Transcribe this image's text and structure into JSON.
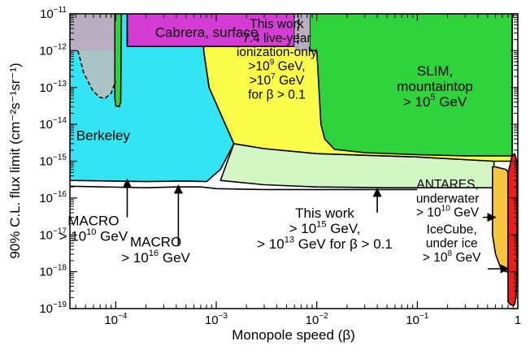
{
  "chart_data": {
    "type": "area",
    "xlabel": "Monopole speed (β)",
    "ylabel": "90% C.L. flux limit (cm⁻²s⁻¹sr⁻¹)",
    "xscale": "log",
    "yscale": "log",
    "xlim": [
      3.5e-05,
      1
    ],
    "ylim": [
      1e-19,
      1e-11
    ],
    "x_ticks": [
      {
        "value": 0.0001,
        "base": "10",
        "exp": "−4"
      },
      {
        "value": 0.001,
        "base": "10",
        "exp": "−3"
      },
      {
        "value": 0.01,
        "base": "10",
        "exp": "−2"
      },
      {
        "value": 0.1,
        "base": "10",
        "exp": "−1"
      },
      {
        "value": 1,
        "base": "1",
        "exp": ""
      }
    ],
    "y_ticks": [
      {
        "value": 1e-11,
        "base": "10",
        "exp": "−11"
      },
      {
        "value": 1e-12,
        "base": "10",
        "exp": "−12"
      },
      {
        "value": 1e-13,
        "base": "10",
        "exp": "−13"
      },
      {
        "value": 1e-14,
        "base": "10",
        "exp": "−14"
      },
      {
        "value": 1e-15,
        "base": "10",
        "exp": "−15"
      },
      {
        "value": 1e-16,
        "base": "10",
        "exp": "−16"
      },
      {
        "value": 1e-17,
        "base": "10",
        "exp": "−17"
      },
      {
        "value": 1e-18,
        "base": "10",
        "exp": "−18"
      },
      {
        "value": 1e-19,
        "base": "10",
        "exp": "−19"
      }
    ],
    "regions": [
      {
        "id": "macro-cyan",
        "color": "#33e5f2",
        "stroke": "#000000",
        "points": [
          [
            3.5e-05,
            3e-16
          ],
          [
            0.0002,
            2.8e-16
          ],
          [
            0.0005,
            2.9e-16
          ],
          [
            0.0008,
            2.8e-16
          ],
          [
            0.0011,
            6e-16
          ],
          [
            0.0015,
            3e-15
          ],
          [
            0.0011,
            2e-14
          ],
          [
            0.00085,
            1e-13
          ],
          [
            0.00075,
            1e-12
          ],
          [
            0.00075,
            1e-11
          ],
          [
            3.5e-05,
            1e-11
          ]
        ]
      },
      {
        "id": "this-work-lightgreen",
        "color": "#d4f5c4",
        "stroke": "#000000",
        "points": [
          [
            0.0011,
            3e-16
          ],
          [
            0.003,
            2.3e-16
          ],
          [
            0.01,
            2e-16
          ],
          [
            0.05,
            1.9e-16
          ],
          [
            0.3,
            1.9e-16
          ],
          [
            0.58,
            1.9e-16
          ],
          [
            0.58,
            1e-15
          ],
          [
            0.1,
            1.3e-15
          ],
          [
            0.01,
            1.6e-15
          ],
          [
            0.003,
            2.2e-15
          ],
          [
            0.0015,
            3e-15
          ]
        ]
      },
      {
        "id": "this-work-yellow",
        "color": "#fbfb4a",
        "stroke": "#000000",
        "points": [
          [
            0.0015,
            3e-15
          ],
          [
            0.003,
            2.2e-15
          ],
          [
            0.01,
            1.6e-15
          ],
          [
            0.1,
            1.3e-15
          ],
          [
            0.58,
            1e-15
          ],
          [
            0.88,
            1e-15
          ],
          [
            0.88,
            1e-11
          ],
          [
            0.00075,
            1e-11
          ],
          [
            0.00075,
            1e-12
          ],
          [
            0.00085,
            1e-13
          ],
          [
            0.0011,
            2e-14
          ]
        ]
      },
      {
        "id": "slim-green",
        "color": "#2fd43c",
        "stroke": "#000000",
        "points": [
          [
            0.0085,
            1e-11
          ],
          [
            0.88,
            1e-11
          ],
          [
            0.88,
            1.4e-15
          ],
          [
            0.3,
            1.4e-15
          ],
          [
            0.1,
            1.5e-15
          ],
          [
            0.03,
            1.7e-15
          ],
          [
            0.015,
            2.1e-15
          ],
          [
            0.012,
            4e-15
          ],
          [
            0.011,
            1e-14
          ],
          [
            0.0105,
            1e-13
          ],
          [
            0.01,
            1e-12
          ],
          [
            0.0085,
            1e-12
          ]
        ]
      },
      {
        "id": "antares-orange",
        "color": "#f8c540",
        "stroke": "#000000",
        "points": [
          [
            0.56,
            1.6e-16
          ],
          [
            0.56,
            1e-17
          ],
          [
            0.6,
            3e-18
          ],
          [
            0.68,
            1.2e-18
          ],
          [
            0.76,
            1e-18
          ],
          [
            0.8,
            1e-18
          ],
          [
            0.8,
            5e-16
          ],
          [
            0.76,
            6e-16
          ],
          [
            0.6,
            7e-16
          ],
          [
            0.56,
            7e-16
          ]
        ]
      },
      {
        "id": "icecube-red",
        "color": "#f21c1c",
        "stroke": "#000000",
        "points": [
          [
            0.8,
            5e-16
          ],
          [
            0.8,
            1.5e-19
          ],
          [
            0.84,
            1.3e-19
          ],
          [
            0.9,
            1.2e-19
          ],
          [
            0.93,
            1.3e-19
          ],
          [
            0.96,
            2e-19
          ],
          [
            0.98,
            8e-19
          ],
          [
            0.98,
            1e-15
          ],
          [
            0.93,
            1.6e-15
          ],
          [
            0.87,
            1.3e-15
          ],
          [
            0.84,
            8e-16
          ]
        ]
      },
      {
        "id": "cabrera-purple",
        "color": "#d43cd4",
        "stroke": "#000000",
        "points": [
          [
            0.00013,
            1.3e-12
          ],
          [
            0.006,
            1.3e-12
          ],
          [
            0.006,
            1e-11
          ],
          [
            0.00013,
            1e-11
          ]
        ]
      },
      {
        "id": "grey-left",
        "color": "#b9aec0",
        "stroke": "none",
        "points": [
          [
            3.5e-05,
            1e-12
          ],
          [
            0.0001,
            1e-12
          ],
          [
            0.0001,
            1e-11
          ],
          [
            3.5e-05,
            1e-11
          ]
        ]
      },
      {
        "id": "berkeley-grey",
        "color": "#aac3c5",
        "stroke": "none",
        "points": [
          [
            4.2e-05,
            1e-12
          ],
          [
            4.8e-05,
            2.5e-13
          ],
          [
            5.8e-05,
            9e-14
          ],
          [
            6.8e-05,
            5.5e-14
          ],
          [
            7.8e-05,
            5e-14
          ],
          [
            9e-05,
            7e-14
          ],
          [
            0.0001,
            1.5e-13
          ],
          [
            0.00011,
            1e-12
          ]
        ]
      },
      {
        "id": "grey-right",
        "color": "#b9aec0",
        "stroke": "none",
        "points": [
          [
            0.006,
            1e-12
          ],
          [
            0.0085,
            1e-12
          ],
          [
            0.0085,
            1e-11
          ],
          [
            0.006,
            1e-11
          ]
        ]
      },
      {
        "id": "green-spike",
        "color": "#2fd43c",
        "stroke": "#000000",
        "points": [
          [
            9.8e-05,
            1e-11
          ],
          [
            9.8e-05,
            5e-14
          ],
          [
            0.0001,
            3.2e-14
          ],
          [
            0.000108,
            3e-14
          ],
          [
            0.000112,
            4e-14
          ],
          [
            0.000114,
            1e-11
          ]
        ]
      }
    ],
    "dashed_lines": [
      {
        "id": "berkeley-dashed",
        "points": [
          [
            4.2e-05,
            1e-12
          ],
          [
            4.8e-05,
            2.5e-13
          ],
          [
            5.8e-05,
            9e-14
          ],
          [
            6.8e-05,
            5.5e-14
          ],
          [
            7.8e-05,
            5e-14
          ],
          [
            9e-05,
            7e-14
          ],
          [
            0.0001,
            1.5e-13
          ]
        ]
      },
      {
        "id": "cabrera-dashed-left",
        "points": [
          [
            0.00013,
            1e-11
          ],
          [
            0.00013,
            1.3e-12
          ]
        ]
      },
      {
        "id": "cabrera-dashed-right",
        "points": [
          [
            0.0065,
            1e-11
          ],
          [
            0.0065,
            1.3e-12
          ]
        ]
      }
    ],
    "solid_lines": [
      {
        "id": "macro-1e16-line",
        "points": [
          [
            3.5e-05,
            2.1e-16
          ],
          [
            0.0002,
            1.9e-16
          ],
          [
            0.0004,
            2e-16
          ],
          [
            0.0007,
            2e-16
          ],
          [
            0.001,
            1.8e-16
          ],
          [
            0.003,
            1.7e-16
          ],
          [
            0.01,
            1.7e-16
          ],
          [
            0.04,
            1.7e-16
          ],
          [
            0.1,
            1.7e-16
          ]
        ]
      }
    ],
    "annotations": [
      {
        "id": "cabrera",
        "lines": [
          "Cabrera, surface"
        ],
        "x": 0.0008,
        "y": 3.2e-12,
        "size": "big"
      },
      {
        "id": "this-work-ionization",
        "lines": [
          "This work",
          "7.4 live-year",
          "ionization-only",
          ">10^9 GeV,",
          ">10^7 GeV",
          "for β > 0.1"
        ],
        "x": 0.004,
        "y": 6e-13,
        "size": "normal"
      },
      {
        "id": "slim",
        "lines": [
          "SLIM,",
          "mountaintop",
          "> 10^5 GeV"
        ],
        "x": 0.15,
        "y": 1.1e-13,
        "size": "big"
      },
      {
        "id": "berkeley",
        "lines": [
          "Berkeley"
        ],
        "x": 7.5e-05,
        "y": 5e-15,
        "size": "big"
      },
      {
        "id": "macro-1e10",
        "lines": [
          "MACRO",
          "> 10^10 GeV"
        ],
        "x": 6e-05,
        "y": 1.5e-17,
        "size": "big"
      },
      {
        "id": "macro-1e16",
        "lines": [
          "MACRO",
          "> 10^16 GeV"
        ],
        "x": 0.00025,
        "y": 4e-18,
        "size": "big"
      },
      {
        "id": "this-work-monopole",
        "lines": [
          "This work",
          "> 10^15 GeV,",
          "> 10^13 GeV for β > 0.1"
        ],
        "x": 0.012,
        "y": 1.5e-17,
        "size": "big"
      },
      {
        "id": "antares",
        "lines": [
          "ANTARES,",
          "underwater",
          "> 10^10 GeV"
        ],
        "x": 0.2,
        "y": 1e-16,
        "size": "normal"
      },
      {
        "id": "icecube",
        "lines": [
          "IceCube,",
          "under ice",
          "> 10^8 GeV"
        ],
        "x": 0.22,
        "y": 6e-18,
        "size": "normal"
      }
    ],
    "arrows": [
      {
        "id": "arrow-macro-1e10",
        "from": [
          0.00013,
          3e-17
        ],
        "to": [
          0.00013,
          3.2e-16
        ]
      },
      {
        "id": "arrow-macro-1e16",
        "from": [
          0.00042,
          5e-18
        ],
        "to": [
          0.00042,
          2.2e-16
        ]
      },
      {
        "id": "arrow-this-work",
        "from": [
          0.04,
          4e-17
        ],
        "to": [
          0.04,
          1.8e-16
        ]
      },
      {
        "id": "arrow-antares",
        "from": [
          0.45,
          3e-17
        ],
        "to": [
          0.6,
          3e-17
        ]
      },
      {
        "id": "arrow-icecube",
        "from": [
          0.5,
          1.2e-18
        ],
        "to": [
          0.81,
          1.2e-18
        ]
      }
    ]
  }
}
